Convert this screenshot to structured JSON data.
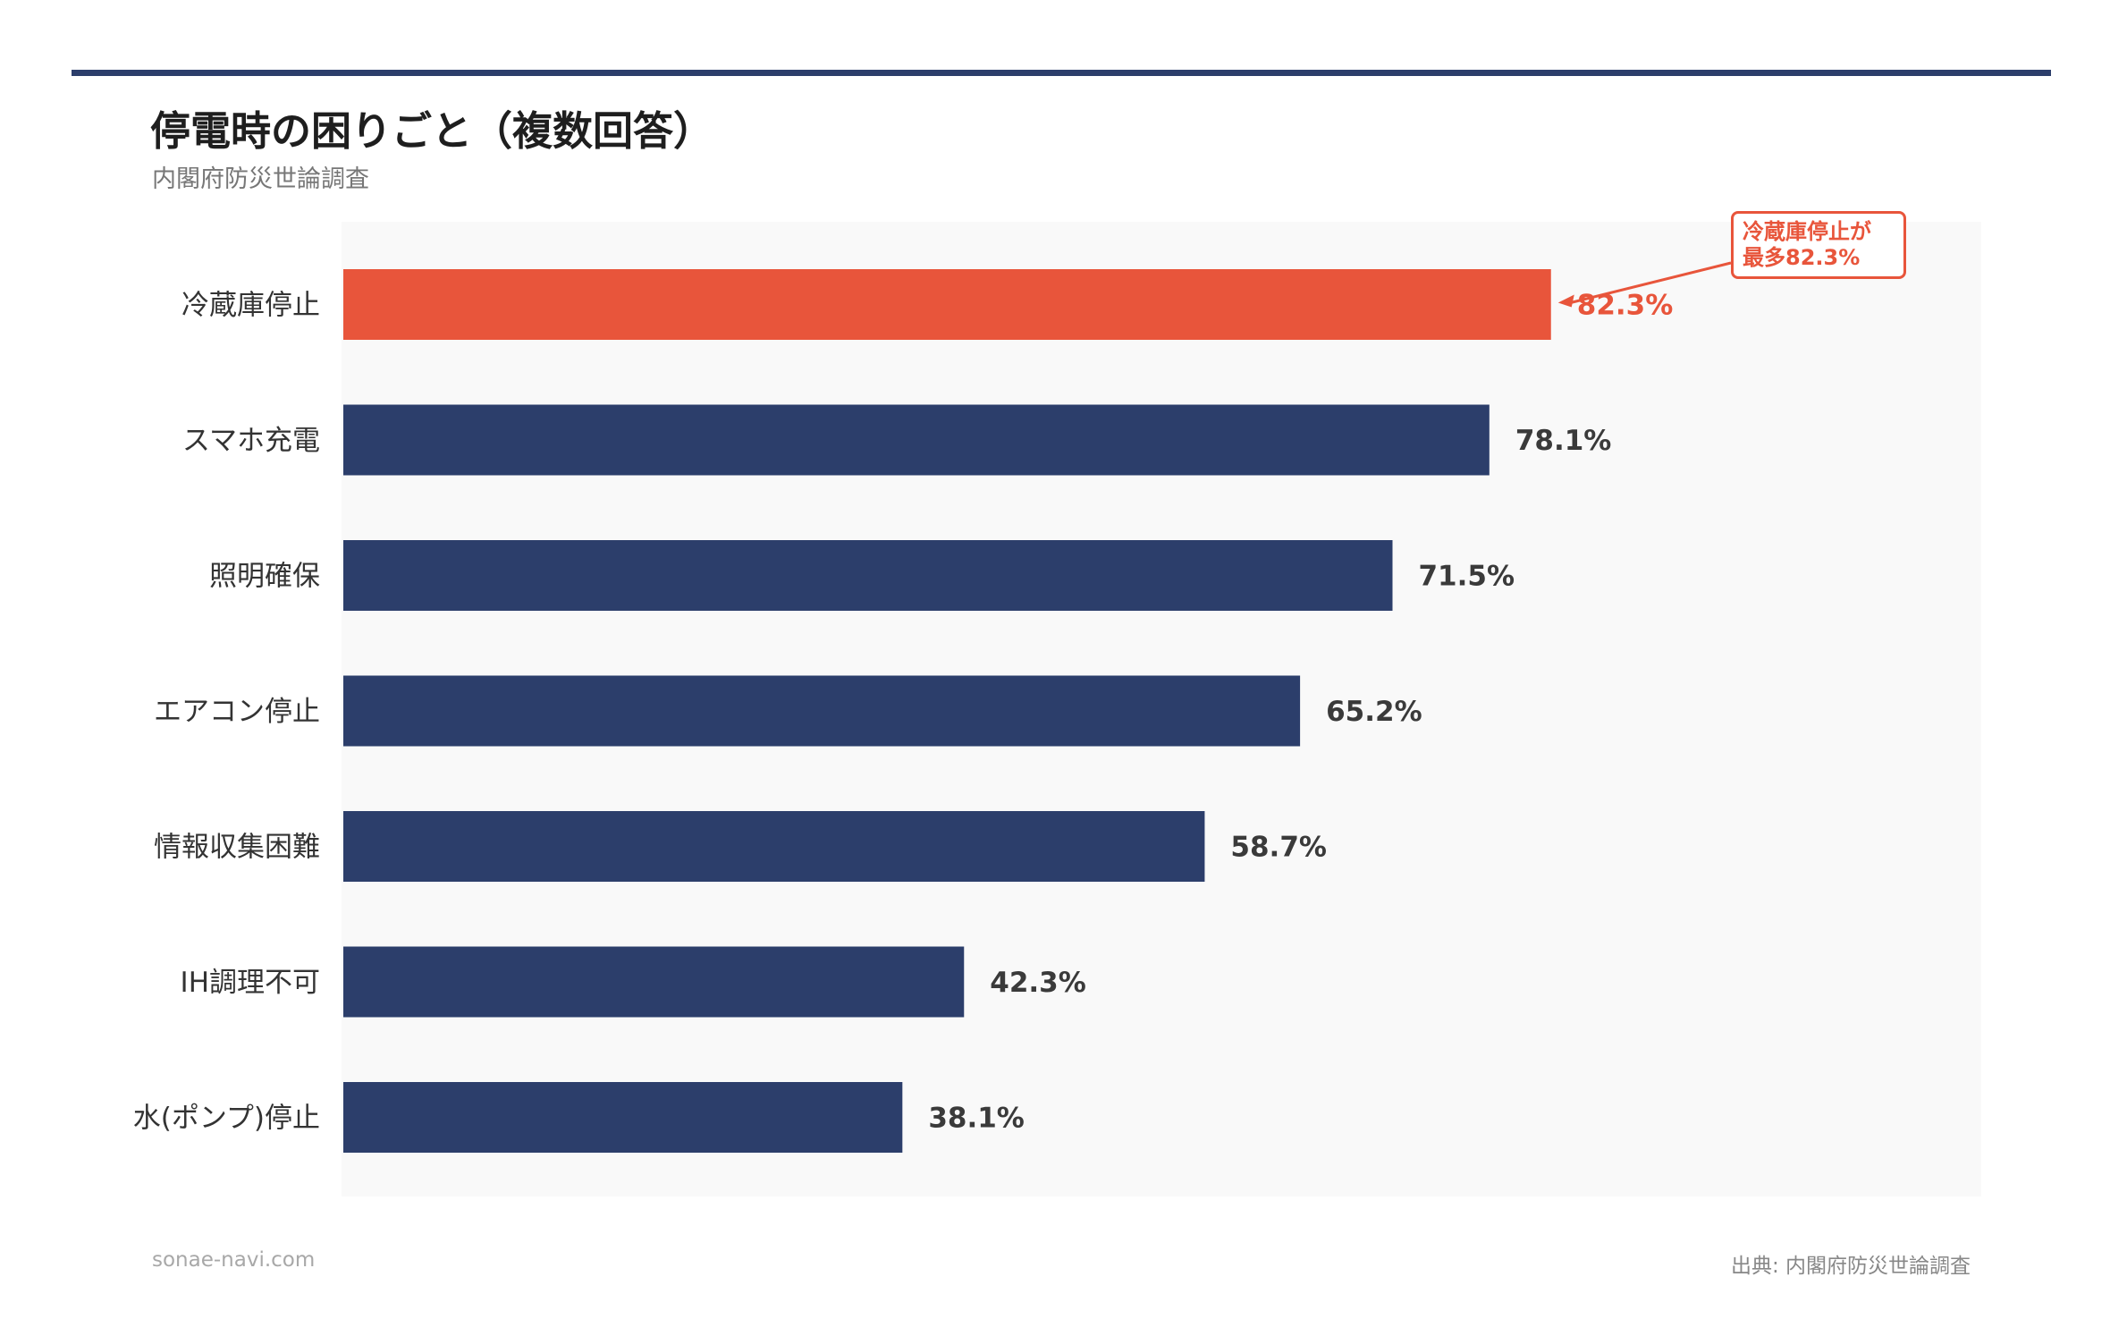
{
  "header": {
    "title": "停電時の困りごと（複数回答）",
    "subtitle": "内閣府防災世論調査"
  },
  "chart_data": {
    "type": "bar",
    "orientation": "horizontal",
    "categories": [
      "冷蔵庫停止",
      "スマホ充電",
      "照明確保",
      "エアコン停止",
      "情報収集困難",
      "IH調理不可",
      "水(ポンプ)停止"
    ],
    "values": [
      82.3,
      78.1,
      71.5,
      65.2,
      58.7,
      42.3,
      38.1
    ],
    "value_labels": [
      "82.3%",
      "78.1%",
      "71.5%",
      "65.2%",
      "58.7%",
      "42.3%",
      "38.1%"
    ],
    "unit": "%",
    "xlim": [
      0,
      111.5
    ],
    "grid": false,
    "highlight_index": 0,
    "colors": {
      "default": "#2c3e6b",
      "highlight": "#e8553b",
      "plot_background": "#f9f9f9"
    },
    "annotation": {
      "lines": [
        "冷蔵庫停止が",
        "最多82.3%"
      ],
      "target_index": 0
    }
  },
  "footer": {
    "site": "sonae-navi.com",
    "source": "出典: 内閣府防災世論調査"
  }
}
